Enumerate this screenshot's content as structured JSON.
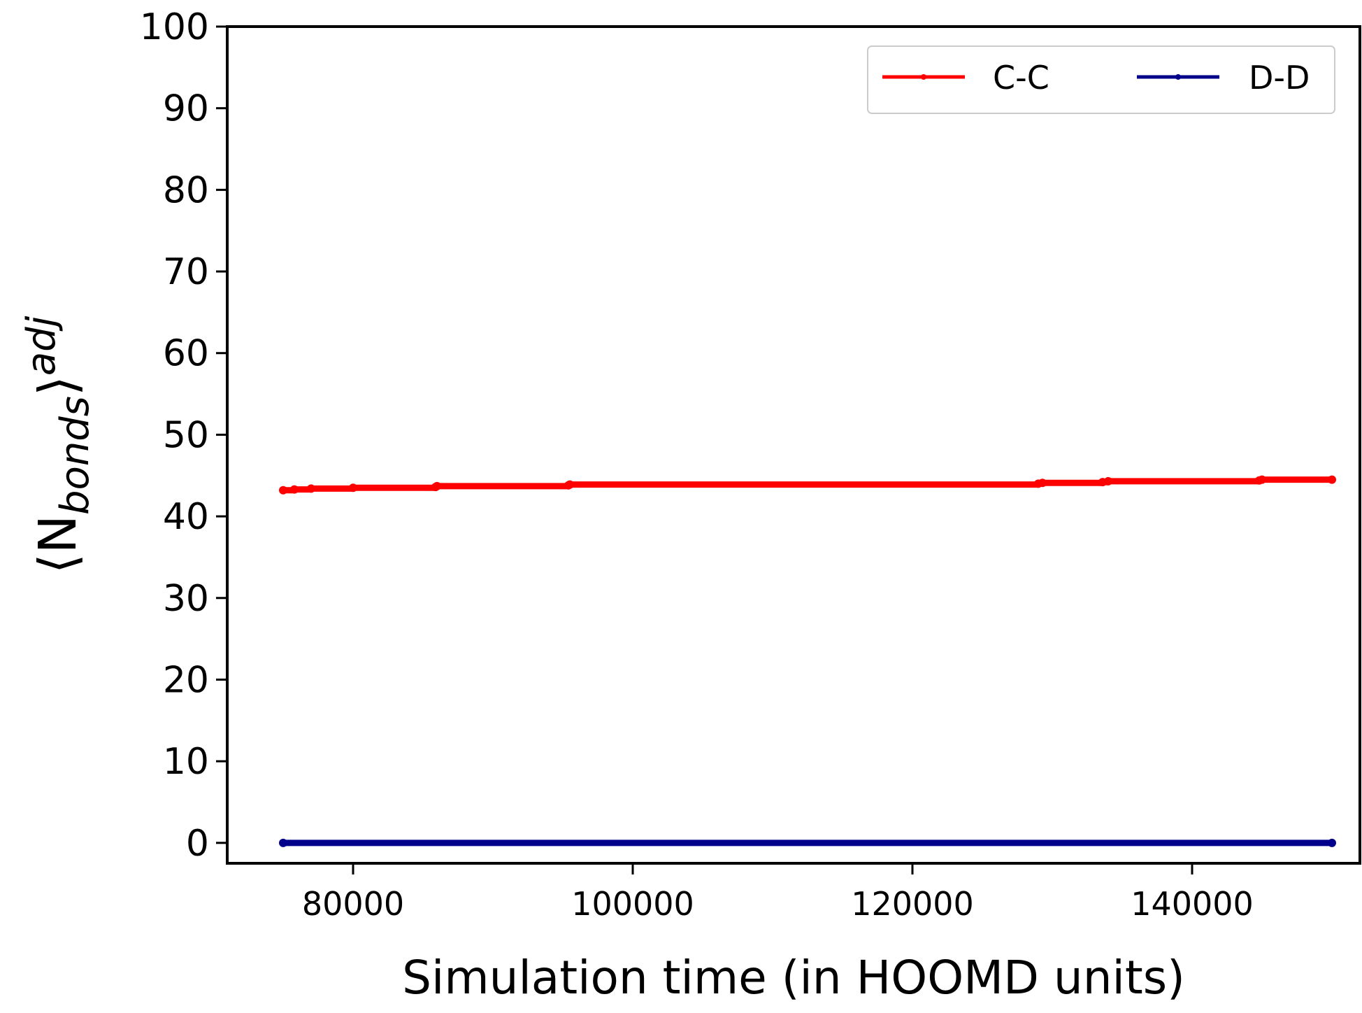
{
  "chart_data": {
    "type": "line",
    "title": "",
    "xlabel": "Simulation time (in HOOMD units)",
    "ylabel": {
      "main": "⟨N",
      "subscript": "bonds",
      "close": "⟩",
      "superscript": "adj"
    },
    "xlim": [
      71000,
      152000
    ],
    "ylim": [
      -2.5,
      100
    ],
    "xticks": [
      80000,
      100000,
      120000,
      140000
    ],
    "xtick_labels": [
      "80000",
      "100000",
      "120000",
      "140000"
    ],
    "yticks": [
      0,
      10,
      20,
      30,
      40,
      50,
      60,
      70,
      80,
      90,
      100
    ],
    "ytick_labels": [
      "0",
      "10",
      "20",
      "30",
      "40",
      "50",
      "60",
      "70",
      "80",
      "90",
      "100"
    ],
    "grid": false,
    "legend": {
      "position": "top-right",
      "columns": 2
    },
    "series": [
      {
        "name": "C-C",
        "color": "#ff0000",
        "marker": "dot",
        "x": [
          75000,
          75800,
          77000,
          80000,
          85900,
          86000,
          95400,
          95500,
          129000,
          129300,
          133600,
          134000,
          144800,
          145000,
          150000
        ],
        "y": [
          43.2,
          43.3,
          43.4,
          43.5,
          43.6,
          43.7,
          43.8,
          43.9,
          44.0,
          44.1,
          44.2,
          44.3,
          44.4,
          44.5,
          44.5
        ]
      },
      {
        "name": "D-D",
        "color": "#00008b",
        "marker": "dot",
        "x": [
          75000,
          150000
        ],
        "y": [
          0,
          0
        ]
      }
    ]
  }
}
